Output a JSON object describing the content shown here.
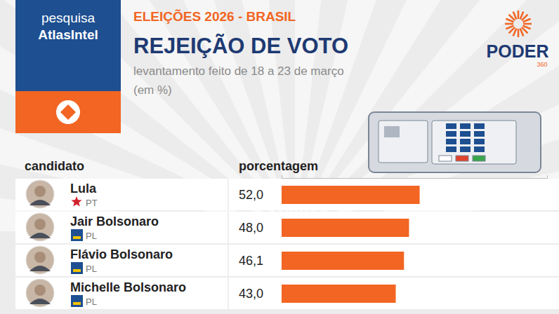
{
  "chart_data": {
    "type": "bar",
    "orientation": "horizontal",
    "title": "REJEIÇÃO DE VOTO",
    "subtitle": "levantamento feito de 18 a 23 de março",
    "annotations": [
      "pesquisa AtlasIntel",
      "ELEIÇÕES 2026 - BRASIL",
      "(em %)",
      "PODER",
      "360"
    ],
    "y_label": "candidato",
    "x_label": "porcentagem",
    "categories": [
      "Lula",
      "Jair Bolsonaro",
      "Flávio Bolsonaro",
      "Michelle Bolsonaro"
    ],
    "parties": [
      "PT",
      "PL",
      "PL",
      "PL"
    ],
    "values": [
      52.0,
      48.0,
      46.1,
      43.0
    ],
    "value_labels": [
      "52,0",
      "48,0",
      "46,1",
      "43,0"
    ],
    "color": "#f26522",
    "xlim": [
      0,
      100
    ],
    "xticks": [
      0,
      100
    ],
    "tick_labels": false,
    "data_labels": true,
    "grid": false
  }
}
